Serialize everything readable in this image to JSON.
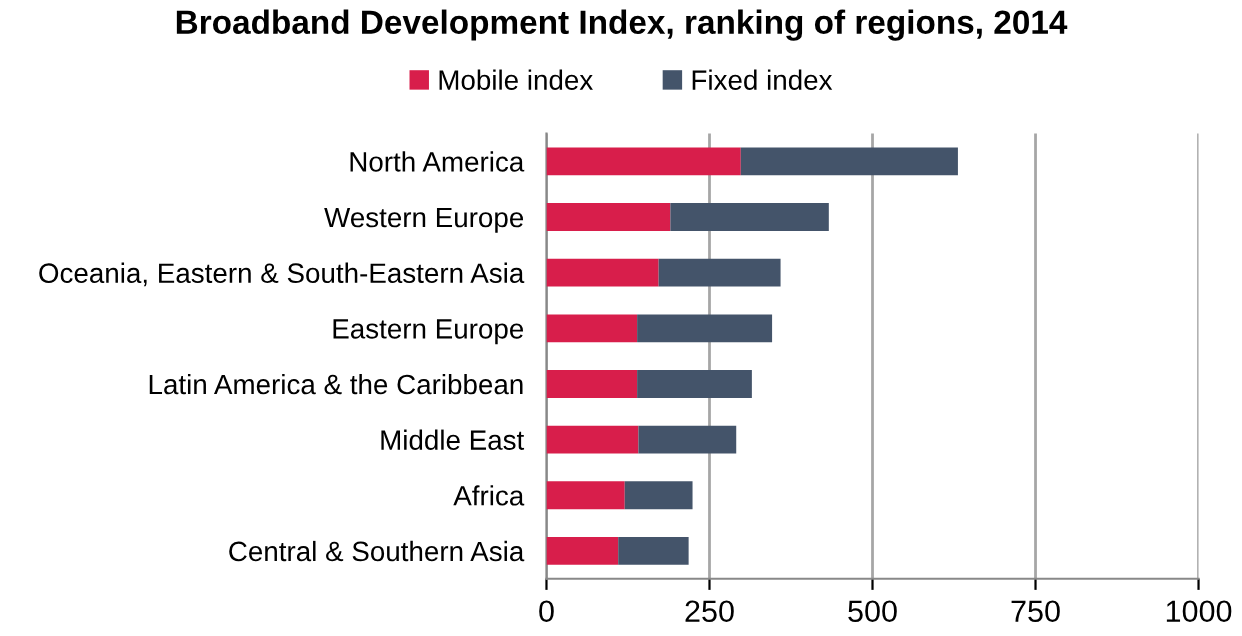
{
  "chart_data": {
    "type": "bar",
    "orientation": "horizontal",
    "stacked": true,
    "title": "Broadband Development Index, ranking of regions, 2014",
    "categories": [
      "North America",
      "Western Europe",
      "Oceania, Eastern & South-Eastern Asia",
      "Eastern Europe",
      "Latin America & the Caribbean",
      "Middle East",
      "Africa",
      "Central & Southern Asia"
    ],
    "series": [
      {
        "name": "Mobile index",
        "color": "#d81e4b",
        "values": [
          298,
          190,
          172,
          139,
          139,
          141,
          120,
          110
        ]
      },
      {
        "name": "Fixed index",
        "color": "#44546a",
        "values": [
          333,
          243,
          187,
          207,
          176,
          150,
          104,
          108
        ]
      }
    ],
    "xlim": [
      0,
      1000
    ],
    "xticks": [
      0,
      250,
      500,
      750,
      1000
    ],
    "grid": "x",
    "legend": "top"
  }
}
